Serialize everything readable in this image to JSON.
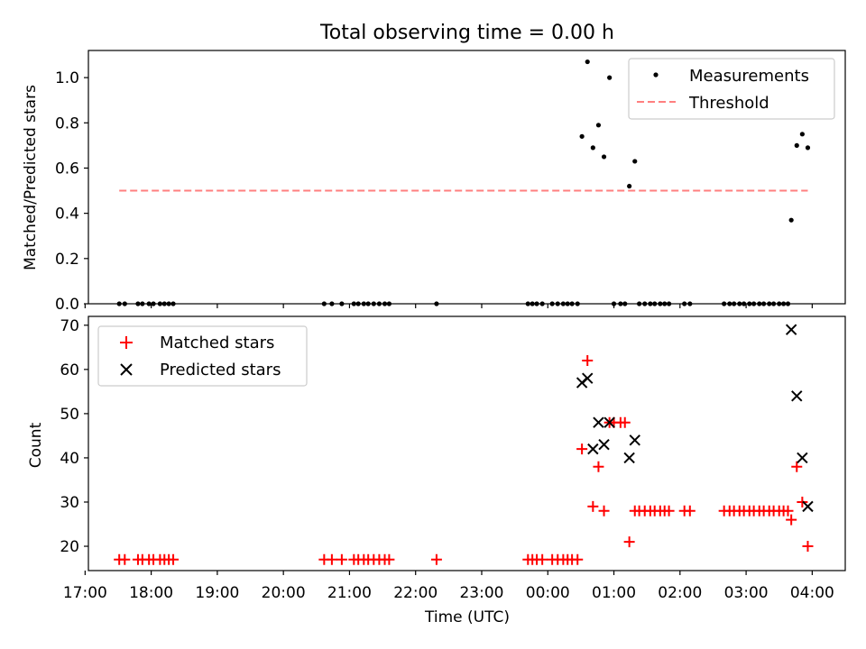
{
  "title": "Total observing time = 0.00 h",
  "colors": {
    "measurement": "#000000",
    "threshold": "#ff7f7f",
    "matched": "#ff0000",
    "predicted": "#000000"
  },
  "chart_data": [
    {
      "type": "scatter",
      "ylabel": "Matched/Predicted stars",
      "xlim": [
        "17:03",
        "04:30"
      ],
      "ylim": [
        0,
        1.12
      ],
      "yticks": [
        "0.0",
        "0.2",
        "0.4",
        "0.6",
        "0.8",
        "1.0"
      ],
      "legend": {
        "placement": "upper right",
        "entries": [
          "Measurements",
          "Threshold"
        ]
      },
      "series": [
        {
          "name": "Measurements",
          "marker": "dot",
          "points": [
            [
              "17:31",
              0
            ],
            [
              "17:36",
              0
            ],
            [
              "17:48",
              0
            ],
            [
              "17:52",
              0
            ],
            [
              "17:58",
              0
            ],
            [
              "18:02",
              0
            ],
            [
              "18:08",
              0
            ],
            [
              "18:12",
              0
            ],
            [
              "18:16",
              0
            ],
            [
              "18:20",
              0
            ],
            [
              "20:37",
              0
            ],
            [
              "20:44",
              0
            ],
            [
              "20:53",
              0
            ],
            [
              "21:04",
              0
            ],
            [
              "21:08",
              0
            ],
            [
              "21:13",
              0
            ],
            [
              "21:17",
              0
            ],
            [
              "21:22",
              0
            ],
            [
              "21:27",
              0
            ],
            [
              "21:32",
              0
            ],
            [
              "21:36",
              0
            ],
            [
              "22:19",
              0
            ],
            [
              "23:42",
              0
            ],
            [
              "23:46",
              0
            ],
            [
              "23:50",
              0
            ],
            [
              "23:55",
              0
            ],
            [
              "00:04",
              0
            ],
            [
              "00:09",
              0
            ],
            [
              "00:14",
              0
            ],
            [
              "00:18",
              0
            ],
            [
              "00:22",
              0
            ],
            [
              "00:27",
              0
            ],
            [
              "00:31",
              0.74
            ],
            [
              "00:36",
              1.07
            ],
            [
              "00:41",
              0.69
            ],
            [
              "00:46",
              0.79
            ],
            [
              "00:51",
              0.65
            ],
            [
              "00:56",
              1.0
            ],
            [
              "01:00",
              0
            ],
            [
              "01:06",
              0
            ],
            [
              "01:10",
              0
            ],
            [
              "01:14",
              0.52
            ],
            [
              "01:19",
              0.63
            ],
            [
              "01:23",
              0
            ],
            [
              "01:28",
              0
            ],
            [
              "01:33",
              0
            ],
            [
              "01:37",
              0
            ],
            [
              "01:42",
              0
            ],
            [
              "01:46",
              0
            ],
            [
              "01:50",
              0
            ],
            [
              "02:04",
              0
            ],
            [
              "02:09",
              0
            ],
            [
              "02:40",
              0
            ],
            [
              "02:45",
              0
            ],
            [
              "02:49",
              0
            ],
            [
              "02:54",
              0
            ],
            [
              "02:58",
              0
            ],
            [
              "03:03",
              0
            ],
            [
              "03:07",
              0
            ],
            [
              "03:12",
              0
            ],
            [
              "03:16",
              0
            ],
            [
              "03:21",
              0
            ],
            [
              "03:25",
              0
            ],
            [
              "03:30",
              0
            ],
            [
              "03:34",
              0
            ],
            [
              "03:38",
              0
            ],
            [
              "03:41",
              0.37
            ],
            [
              "03:46",
              0.7
            ],
            [
              "03:51",
              0.75
            ],
            [
              "03:56",
              0.69
            ]
          ]
        },
        {
          "name": "Threshold",
          "line": "dashed",
          "x": [
            "17:31",
            "03:56"
          ],
          "y": [
            0.5,
            0.5
          ]
        }
      ]
    },
    {
      "type": "scatter",
      "xlabel": "Time (UTC)",
      "ylabel": "Count",
      "xlim": [
        "17:03",
        "04:30"
      ],
      "ylim": [
        14.5,
        72
      ],
      "yticks": [
        "20",
        "30",
        "40",
        "50",
        "60",
        "70"
      ],
      "xticks": [
        "17:00",
        "18:00",
        "19:00",
        "20:00",
        "21:00",
        "22:00",
        "23:00",
        "00:00",
        "01:00",
        "02:00",
        "03:00",
        "04:00"
      ],
      "legend": {
        "placement": "upper left",
        "entries": [
          "Matched stars",
          "Predicted stars"
        ]
      },
      "series": [
        {
          "name": "Matched stars",
          "marker": "plus",
          "points": [
            [
              "17:31",
              17
            ],
            [
              "17:36",
              17
            ],
            [
              "17:48",
              17
            ],
            [
              "17:52",
              17
            ],
            [
              "17:58",
              17
            ],
            [
              "18:02",
              17
            ],
            [
              "18:08",
              17
            ],
            [
              "18:12",
              17
            ],
            [
              "18:16",
              17
            ],
            [
              "18:20",
              17
            ],
            [
              "20:37",
              17
            ],
            [
              "20:44",
              17
            ],
            [
              "20:53",
              17
            ],
            [
              "21:04",
              17
            ],
            [
              "21:08",
              17
            ],
            [
              "21:13",
              17
            ],
            [
              "21:17",
              17
            ],
            [
              "21:22",
              17
            ],
            [
              "21:27",
              17
            ],
            [
              "21:32",
              17
            ],
            [
              "21:36",
              17
            ],
            [
              "22:19",
              17
            ],
            [
              "23:42",
              17
            ],
            [
              "23:46",
              17
            ],
            [
              "23:50",
              17
            ],
            [
              "23:55",
              17
            ],
            [
              "00:04",
              17
            ],
            [
              "00:09",
              17
            ],
            [
              "00:14",
              17
            ],
            [
              "00:18",
              17
            ],
            [
              "00:22",
              17
            ],
            [
              "00:27",
              17
            ],
            [
              "00:31",
              42
            ],
            [
              "00:36",
              62
            ],
            [
              "00:41",
              29
            ],
            [
              "00:46",
              38
            ],
            [
              "00:51",
              28
            ],
            [
              "00:56",
              48
            ],
            [
              "01:00",
              48
            ],
            [
              "01:06",
              48
            ],
            [
              "01:10",
              48
            ],
            [
              "01:14",
              21
            ],
            [
              "01:19",
              28
            ],
            [
              "01:23",
              28
            ],
            [
              "01:28",
              28
            ],
            [
              "01:33",
              28
            ],
            [
              "01:37",
              28
            ],
            [
              "01:42",
              28
            ],
            [
              "01:46",
              28
            ],
            [
              "01:50",
              28
            ],
            [
              "02:04",
              28
            ],
            [
              "02:09",
              28
            ],
            [
              "02:40",
              28
            ],
            [
              "02:45",
              28
            ],
            [
              "02:49",
              28
            ],
            [
              "02:54",
              28
            ],
            [
              "02:58",
              28
            ],
            [
              "03:03",
              28
            ],
            [
              "03:07",
              28
            ],
            [
              "03:12",
              28
            ],
            [
              "03:16",
              28
            ],
            [
              "03:21",
              28
            ],
            [
              "03:25",
              28
            ],
            [
              "03:30",
              28
            ],
            [
              "03:34",
              28
            ],
            [
              "03:38",
              28
            ],
            [
              "03:41",
              26
            ],
            [
              "03:46",
              38
            ],
            [
              "03:51",
              30
            ],
            [
              "03:56",
              20
            ]
          ]
        },
        {
          "name": "Predicted stars",
          "marker": "x",
          "points": [
            [
              "00:31",
              57
            ],
            [
              "00:36",
              58
            ],
            [
              "00:41",
              42
            ],
            [
              "00:46",
              48
            ],
            [
              "00:51",
              43
            ],
            [
              "00:56",
              48
            ],
            [
              "01:14",
              40
            ],
            [
              "01:19",
              44
            ],
            [
              "03:41",
              69
            ],
            [
              "03:46",
              54
            ],
            [
              "03:51",
              40
            ],
            [
              "03:56",
              29
            ]
          ]
        }
      ]
    }
  ]
}
